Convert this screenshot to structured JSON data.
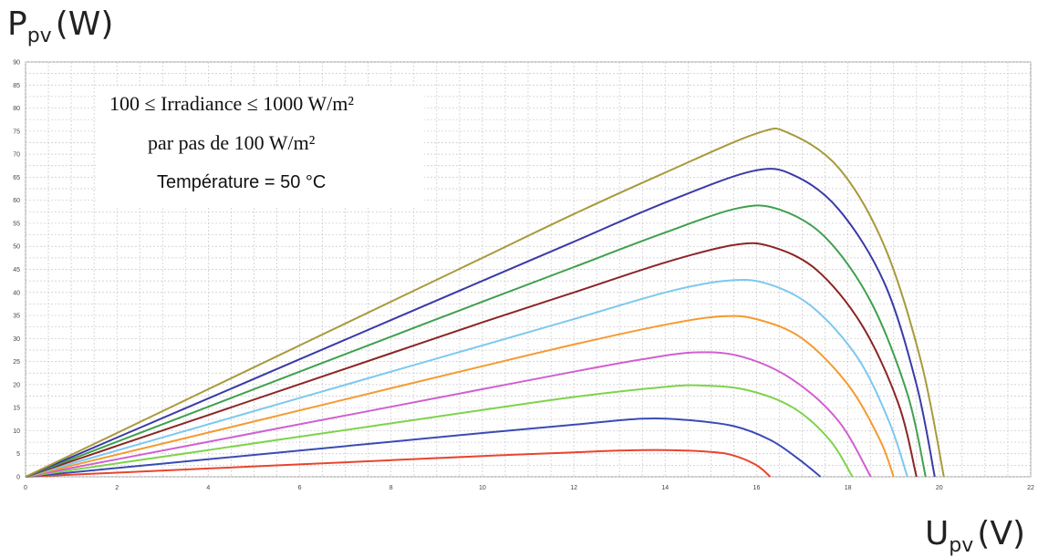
{
  "axes": {
    "y_symbol": "P",
    "y_subscript": "pv",
    "y_unit": "(W)",
    "x_symbol": "U",
    "x_subscript": "pv",
    "x_unit": "(V)"
  },
  "annotations": {
    "line1": "100 ≤ Irradiance ≤ 1000 W/m²",
    "line2": "par pas de 100 W/m²",
    "line3": "Température = 50 °C"
  },
  "chart_data": {
    "type": "line",
    "title": "",
    "xlabel": "Upv (V)",
    "ylabel": "Ppv (W)",
    "xlim": [
      0,
      22
    ],
    "ylim": [
      0,
      90
    ],
    "xticks": [
      0,
      2,
      4,
      6,
      8,
      10,
      12,
      14,
      16,
      18,
      20,
      22
    ],
    "yticks": [
      0,
      5,
      10,
      15,
      20,
      25,
      30,
      35,
      40,
      45,
      50,
      55,
      60,
      65,
      70,
      75,
      80,
      85,
      90
    ],
    "grid": true,
    "legend": "none",
    "series": [
      {
        "color": "#e8452e",
        "points": [
          [
            0,
            0
          ],
          [
            2,
            0.9
          ],
          [
            4,
            1.8
          ],
          [
            6,
            2.7
          ],
          [
            8,
            3.6
          ],
          [
            10,
            4.5
          ],
          [
            12,
            5.3
          ],
          [
            13,
            5.7
          ],
          [
            14,
            5.8
          ],
          [
            15,
            5.4
          ],
          [
            15.5,
            4.6
          ],
          [
            16,
            2.5
          ],
          [
            16.3,
            0
          ]
        ]
      },
      {
        "color": "#3a4bb5",
        "points": [
          [
            0,
            0
          ],
          [
            2,
            1.9
          ],
          [
            4,
            3.8
          ],
          [
            6,
            5.7
          ],
          [
            8,
            7.6
          ],
          [
            10,
            9.5
          ],
          [
            12,
            11.3
          ],
          [
            13.5,
            12.6
          ],
          [
            14.5,
            12.3
          ],
          [
            15.5,
            11
          ],
          [
            16.3,
            8
          ],
          [
            16.9,
            4
          ],
          [
            17.4,
            0
          ]
        ]
      },
      {
        "color": "#7ed34b",
        "points": [
          [
            0,
            0
          ],
          [
            2,
            2.9
          ],
          [
            4,
            5.8
          ],
          [
            6,
            8.7
          ],
          [
            8,
            11.6
          ],
          [
            10,
            14.5
          ],
          [
            12,
            17.3
          ],
          [
            14,
            19.5
          ],
          [
            14.8,
            19.8
          ],
          [
            15.8,
            18.8
          ],
          [
            16.8,
            15
          ],
          [
            17.6,
            8
          ],
          [
            18.1,
            0
          ]
        ]
      },
      {
        "color": "#d060d0",
        "points": [
          [
            0,
            0
          ],
          [
            2,
            3.8
          ],
          [
            4,
            7.6
          ],
          [
            6,
            11.4
          ],
          [
            8,
            15.2
          ],
          [
            10,
            19
          ],
          [
            12,
            22.8
          ],
          [
            13.5,
            25.5
          ],
          [
            14.7,
            27
          ],
          [
            15.7,
            26
          ],
          [
            16.8,
            21
          ],
          [
            17.8,
            12
          ],
          [
            18.5,
            0
          ]
        ]
      },
      {
        "color": "#f59a30",
        "points": [
          [
            0,
            0
          ],
          [
            2,
            4.8
          ],
          [
            4,
            9.6
          ],
          [
            6,
            14.4
          ],
          [
            8,
            19.2
          ],
          [
            10,
            24
          ],
          [
            12,
            28.7
          ],
          [
            14,
            33
          ],
          [
            15.2,
            34.8
          ],
          [
            16,
            34.2
          ],
          [
            17,
            30
          ],
          [
            18,
            20
          ],
          [
            18.7,
            8
          ],
          [
            19,
            0
          ]
        ]
      },
      {
        "color": "#7cc8ef",
        "points": [
          [
            0,
            0
          ],
          [
            2,
            5.7
          ],
          [
            4,
            11.4
          ],
          [
            6,
            17.1
          ],
          [
            8,
            22.8
          ],
          [
            10,
            28.5
          ],
          [
            12,
            34.2
          ],
          [
            14,
            40
          ],
          [
            15.3,
            42.5
          ],
          [
            16.2,
            42
          ],
          [
            17.2,
            37
          ],
          [
            18.2,
            26
          ],
          [
            18.9,
            12
          ],
          [
            19.3,
            0
          ]
        ]
      },
      {
        "color": "#8b2525",
        "points": [
          [
            0,
            0
          ],
          [
            2,
            6.7
          ],
          [
            4,
            13.4
          ],
          [
            6,
            20.1
          ],
          [
            8,
            26.8
          ],
          [
            10,
            33.5
          ],
          [
            12,
            40
          ],
          [
            14,
            46.5
          ],
          [
            15.5,
            50.3
          ],
          [
            16.3,
            50
          ],
          [
            17.3,
            45
          ],
          [
            18.3,
            33
          ],
          [
            19.1,
            16
          ],
          [
            19.5,
            0
          ]
        ]
      },
      {
        "color": "#3fa04e",
        "points": [
          [
            0,
            0
          ],
          [
            2,
            7.6
          ],
          [
            4,
            15.2
          ],
          [
            6,
            22.8
          ],
          [
            8,
            30.4
          ],
          [
            10,
            38
          ],
          [
            12,
            45.5
          ],
          [
            14,
            53
          ],
          [
            15.6,
            58.3
          ],
          [
            16.5,
            58
          ],
          [
            17.5,
            52
          ],
          [
            18.5,
            38
          ],
          [
            19.3,
            18
          ],
          [
            19.7,
            0
          ]
        ]
      },
      {
        "color": "#3a3aa8",
        "points": [
          [
            0,
            0
          ],
          [
            2,
            8.5
          ],
          [
            4,
            17
          ],
          [
            6,
            25.5
          ],
          [
            8,
            34
          ],
          [
            10,
            42.5
          ],
          [
            12,
            51
          ],
          [
            14,
            59.5
          ],
          [
            15.9,
            66.3
          ],
          [
            16.8,
            65.5
          ],
          [
            17.8,
            58
          ],
          [
            18.8,
            42
          ],
          [
            19.5,
            20
          ],
          [
            19.9,
            0
          ]
        ]
      },
      {
        "color": "#a89a3c",
        "points": [
          [
            0,
            0
          ],
          [
            2,
            9.5
          ],
          [
            4,
            19
          ],
          [
            6,
            28.5
          ],
          [
            8,
            38
          ],
          [
            10,
            47.5
          ],
          [
            12,
            57
          ],
          [
            14,
            66
          ],
          [
            16,
            74.5
          ],
          [
            16.7,
            74.6
          ],
          [
            17.8,
            67
          ],
          [
            18.8,
            50
          ],
          [
            19.6,
            25
          ],
          [
            20.1,
            0
          ]
        ]
      }
    ]
  }
}
